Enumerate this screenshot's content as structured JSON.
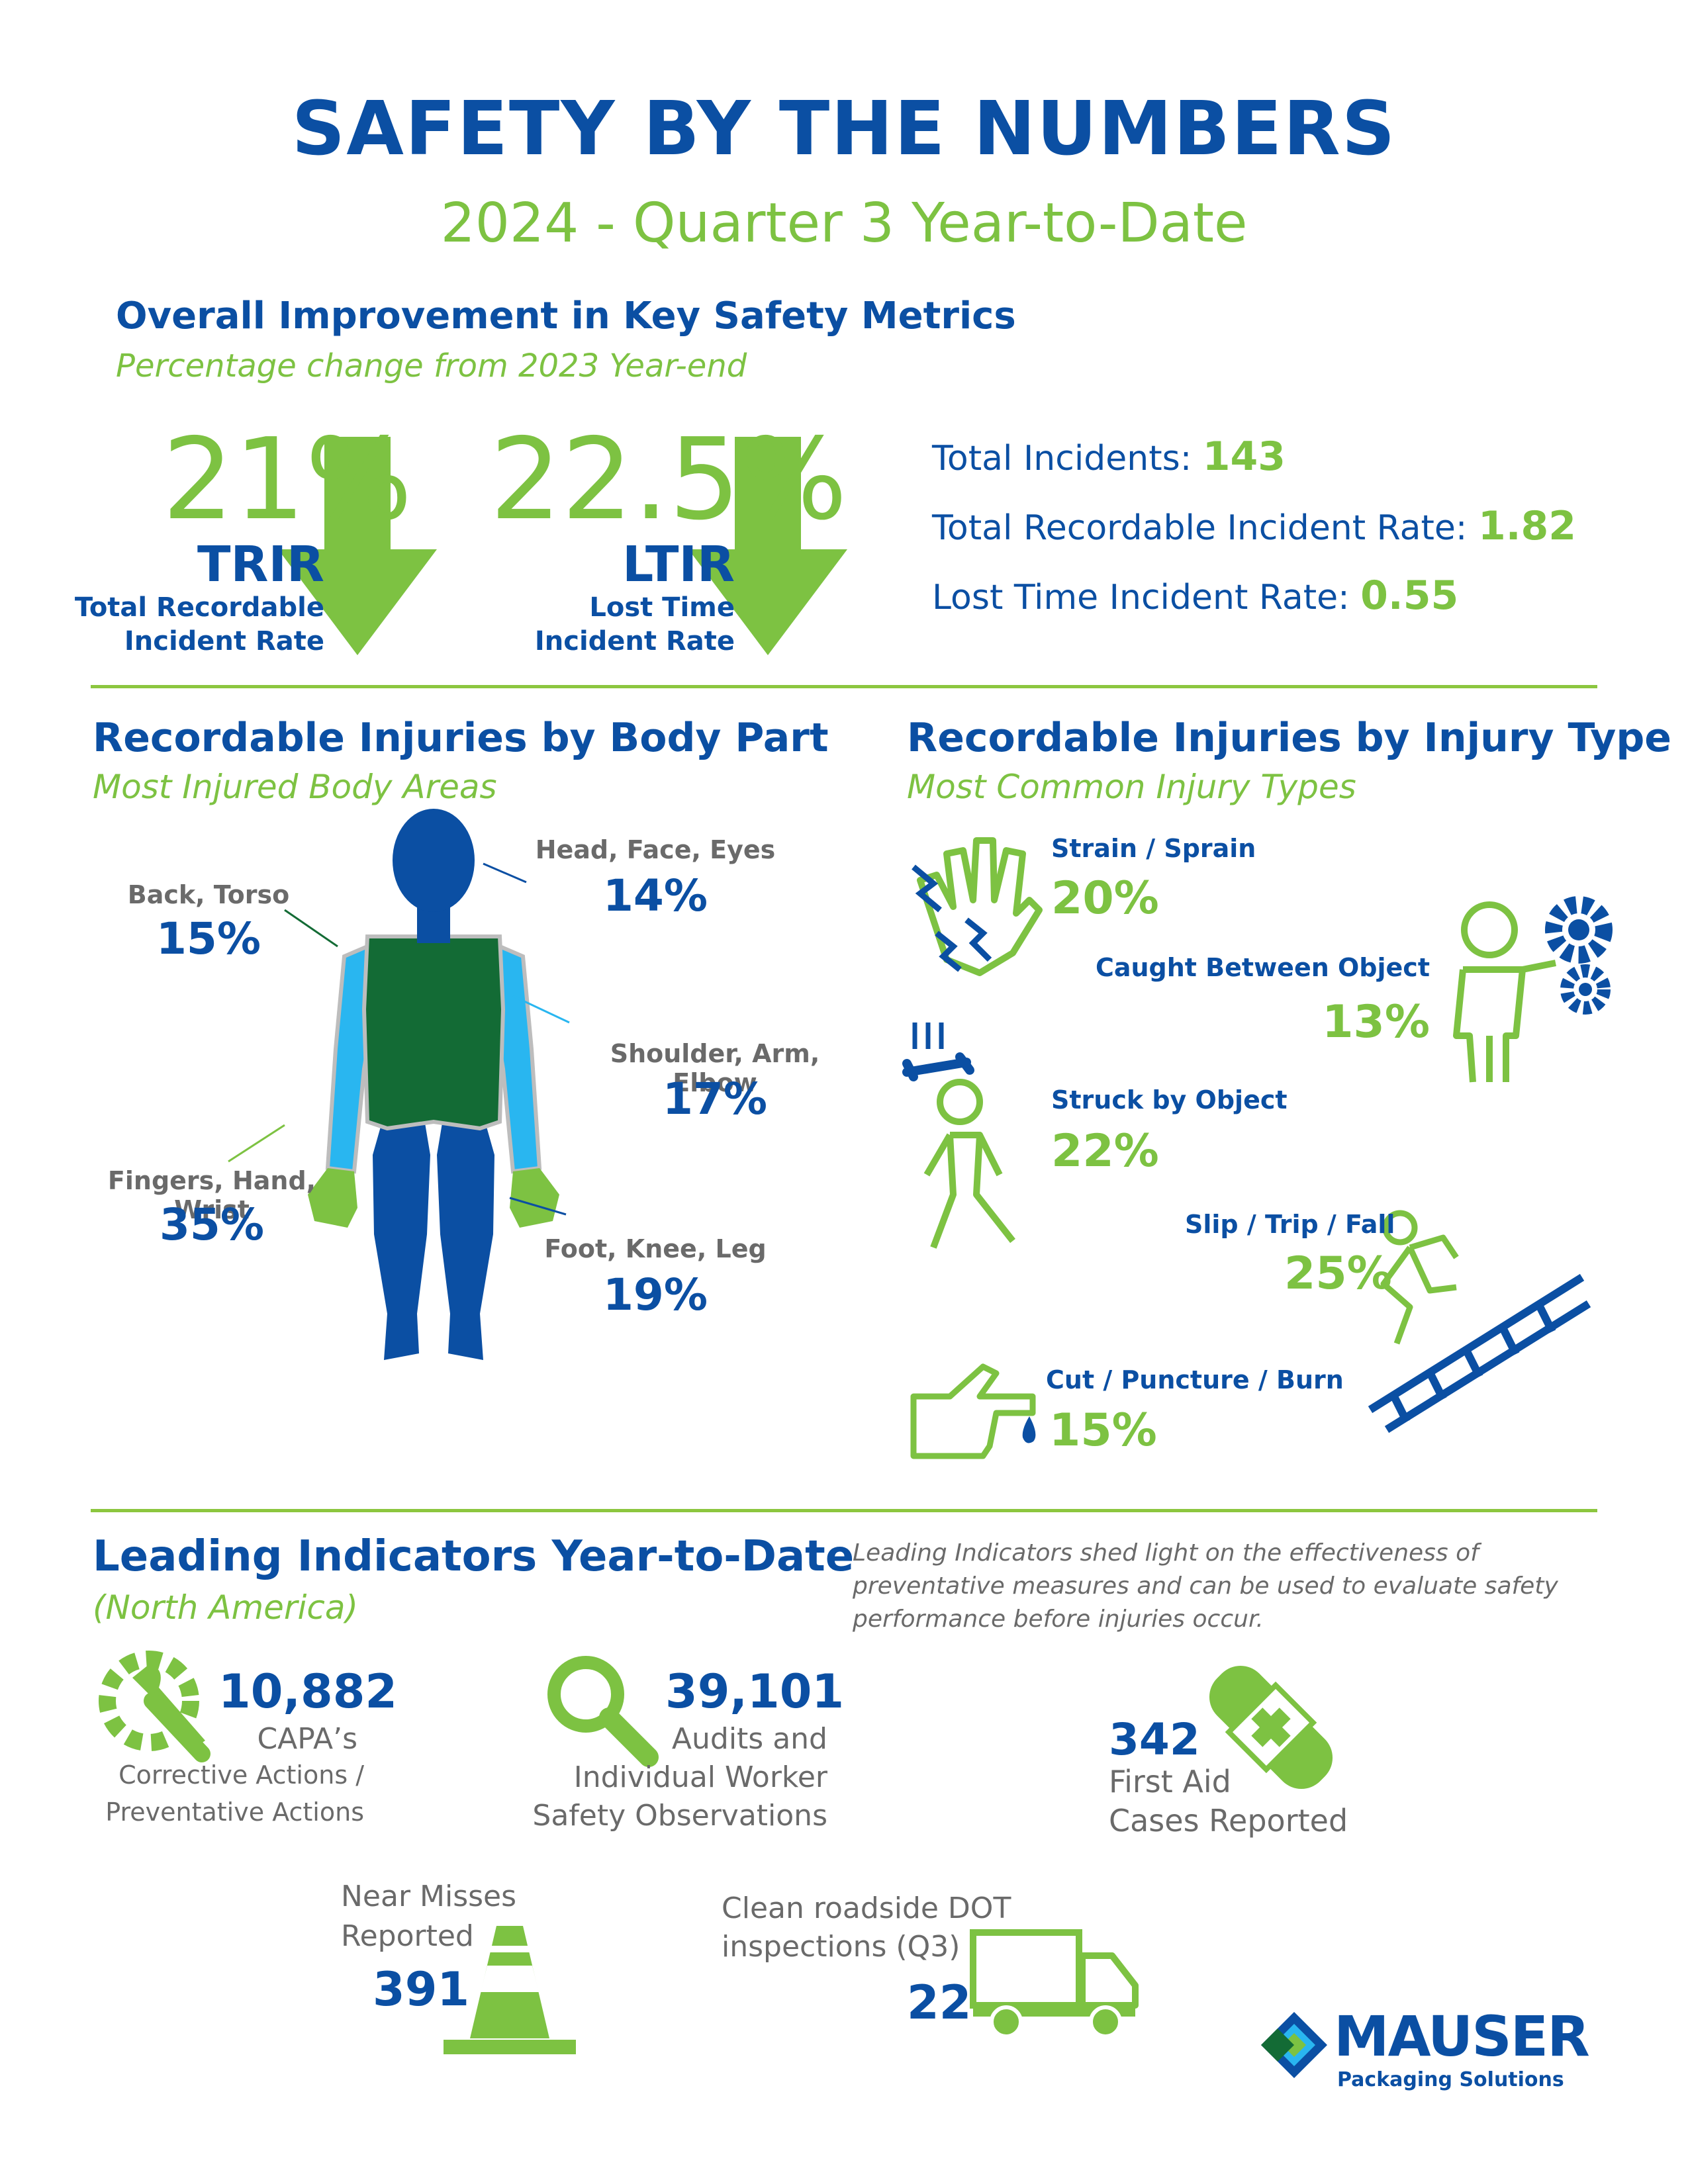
{
  "header": {
    "title": "SAFETY BY THE NUMBERS",
    "subtitle": "2024 - Quarter 3 Year-to-Date"
  },
  "improvement": {
    "heading": "Overall Improvement in Key Safety Metrics",
    "subheading": "Percentage change from 2023 Year-end",
    "trir": {
      "value": "21%",
      "abbr": "TRIR",
      "name_line1": "Total Recordable",
      "name_line2": "Incident Rate"
    },
    "ltir": {
      "value": "22.5%",
      "abbr": "LTIR",
      "name_line1": "Lost Time",
      "name_line2": "Incident Rate"
    },
    "stats": [
      {
        "label": "Total Incidents:",
        "value": "143"
      },
      {
        "label": "Total Recordable Incident Rate:",
        "value": "1.82"
      },
      {
        "label": "Lost Time Incident Rate:",
        "value": "0.55"
      }
    ]
  },
  "body_part": {
    "heading": "Recordable Injuries by Body Part",
    "subheading": "Most Injured Body Areas",
    "items": {
      "head": {
        "label": "Head, Face, Eyes",
        "pct": "14%"
      },
      "back": {
        "label": "Back, Torso",
        "pct": "15%"
      },
      "shoulder": {
        "label": "Shoulder, Arm, Elbow",
        "pct": "17%"
      },
      "fingers": {
        "label": "Fingers, Hand, Wrist",
        "pct": "35%"
      },
      "foot": {
        "label": "Foot, Knee, Leg",
        "pct": "19%"
      }
    }
  },
  "injury_type": {
    "heading": "Recordable Injuries by Injury Type",
    "subheading": "Most Common Injury Types",
    "items": {
      "strain": {
        "label": "Strain / Sprain",
        "pct": "20%"
      },
      "caught": {
        "label": "Caught Between Object",
        "pct": "13%"
      },
      "struck": {
        "label": "Struck by Object",
        "pct": "22%"
      },
      "slip": {
        "label": "Slip / Trip /  Fall",
        "pct": "25%"
      },
      "cut": {
        "label": "Cut / Puncture / Burn",
        "pct": "15%"
      }
    }
  },
  "leading": {
    "heading": "Leading Indicators Year-to-Date",
    "subheading": "(North America)",
    "note_line1": "Leading Indicators shed light on the effectiveness of",
    "note_line2": "preventative measures and can be used to evaluate safety",
    "note_line3": "performance before injuries occur.",
    "capa": {
      "value": "10,882",
      "line1": "CAPA’s",
      "line2": "Corrective Actions /",
      "line3": "Preventative Actions"
    },
    "audits": {
      "value": "39,101",
      "line1": "Audits and",
      "line2": "Individual Worker",
      "line3": "Safety  Observations"
    },
    "first_aid": {
      "value": "342",
      "line1": "First Aid",
      "line2": "Cases Reported"
    },
    "near_miss": {
      "line1": "Near Misses",
      "line2": "Reported",
      "value": "391"
    },
    "dot": {
      "line1": "Clean roadside DOT",
      "line2": "inspections (Q3)",
      "value": "22"
    }
  },
  "logo": {
    "name": "MAUSER",
    "tagline": "Packaging Solutions"
  },
  "colors": {
    "blue": "#0b4fa3",
    "green": "#7dc242",
    "gray": "#6a6a6a",
    "light_blue": "#29b6f0",
    "dark_green": "#136b35"
  }
}
